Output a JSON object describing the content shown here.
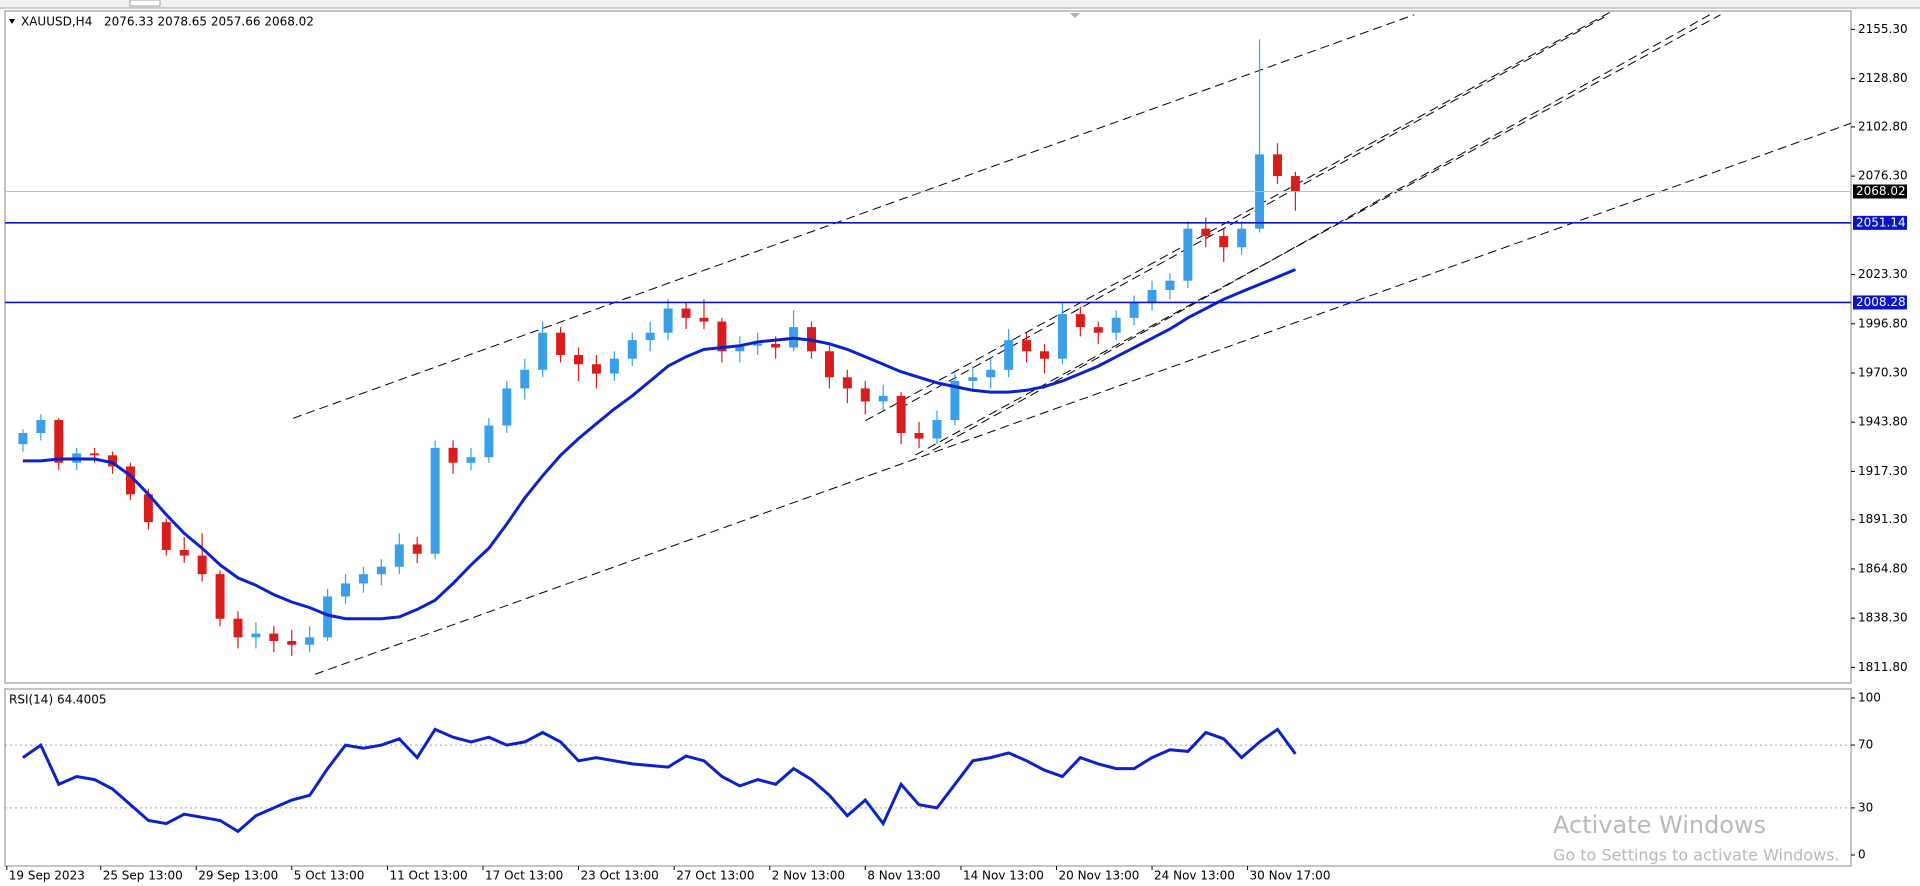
{
  "chart_data": [
    {
      "type": "candlestick",
      "symbol": "XAUUSD,H4",
      "ohlc": "2076.33 2078.65 2057.66 2068.02",
      "up_color": "#3a9fe6",
      "down_color": "#d91c1c",
      "xlim": [
        -1,
        102
      ],
      "ylim": [
        1803.4,
        2165.2
      ],
      "yticks": [
        {
          "value": 2155.3,
          "label": "2155.30"
        },
        {
          "value": 2128.8,
          "label": "2128.80"
        },
        {
          "value": 2102.8,
          "label": "2102.80"
        },
        {
          "value": 2076.3,
          "label": "2076.30"
        },
        {
          "value": 2023.3,
          "label": "2023.30"
        },
        {
          "value": 1996.8,
          "label": "1996.80"
        },
        {
          "value": 1970.3,
          "label": "1970.30"
        },
        {
          "value": 1943.8,
          "label": "1943.80"
        },
        {
          "value": 1917.3,
          "label": "1917.30"
        },
        {
          "value": 1891.3,
          "label": "1891.30"
        },
        {
          "value": 1864.8,
          "label": "1864.80"
        },
        {
          "value": 1838.3,
          "label": "1838.30"
        },
        {
          "value": 1811.8,
          "label": "1811.80"
        }
      ],
      "xticks": [
        {
          "value": -0.9,
          "label": "19 Sep 2023"
        },
        {
          "value": 4.34,
          "label": "25 Sep 13:00"
        },
        {
          "value": 9.67,
          "label": "29 Sep 13:00"
        },
        {
          "value": 15.0,
          "label": "5 Oct 13:00"
        },
        {
          "value": 20.34,
          "label": "11 Oct 13:00"
        },
        {
          "value": 25.67,
          "label": "17 Oct 13:00"
        },
        {
          "value": 31.0,
          "label": "23 Oct 13:00"
        },
        {
          "value": 36.34,
          "label": "27 Oct 13:00"
        },
        {
          "value": 41.67,
          "label": "2 Nov 13:00"
        },
        {
          "value": 47.0,
          "label": "8 Nov 13:00"
        },
        {
          "value": 52.34,
          "label": "14 Nov 13:00"
        },
        {
          "value": 57.67,
          "label": "20 Nov 13:00"
        },
        {
          "value": 63.0,
          "label": "24 Nov 13:00"
        },
        {
          "value": 68.33,
          "label": "30 Nov 17:00"
        }
      ],
      "candles": [
        [
          1932,
          1940,
          1928,
          1938
        ],
        [
          1938,
          1948,
          1934,
          1945
        ],
        [
          1945,
          1946,
          1918,
          1922
        ],
        [
          1922,
          1930,
          1918,
          1927
        ],
        [
          1927,
          1930,
          1922,
          1926
        ],
        [
          1926,
          1928,
          1916,
          1920
        ],
        [
          1920,
          1922,
          1902,
          1905
        ],
        [
          1905,
          1908,
          1886,
          1890
        ],
        [
          1890,
          1892,
          1872,
          1875
        ],
        [
          1875,
          1882,
          1868,
          1872
        ],
        [
          1872,
          1884,
          1858,
          1862
        ],
        [
          1862,
          1864,
          1834,
          1838
        ],
        [
          1838,
          1842,
          1822,
          1828
        ],
        [
          1828,
          1836,
          1822,
          1830
        ],
        [
          1830,
          1834,
          1820,
          1826
        ],
        [
          1826,
          1832,
          1818,
          1824
        ],
        [
          1824,
          1834,
          1820,
          1828
        ],
        [
          1828,
          1854,
          1826,
          1850
        ],
        [
          1850,
          1862,
          1846,
          1857
        ],
        [
          1857,
          1866,
          1852,
          1862
        ],
        [
          1862,
          1870,
          1856,
          1866
        ],
        [
          1866,
          1884,
          1862,
          1878
        ],
        [
          1878,
          1882,
          1868,
          1873
        ],
        [
          1873,
          1934,
          1870,
          1930
        ],
        [
          1930,
          1934,
          1916,
          1922
        ],
        [
          1922,
          1930,
          1918,
          1925
        ],
        [
          1925,
          1946,
          1922,
          1942
        ],
        [
          1942,
          1966,
          1938,
          1962
        ],
        [
          1962,
          1978,
          1956,
          1972
        ],
        [
          1972,
          1998,
          1968,
          1992
        ],
        [
          1992,
          1995,
          1976,
          1980
        ],
        [
          1980,
          1984,
          1966,
          1975
        ],
        [
          1975,
          1980,
          1962,
          1970
        ],
        [
          1970,
          1982,
          1966,
          1978
        ],
        [
          1978,
          1992,
          1974,
          1988
        ],
        [
          1988,
          1998,
          1982,
          1992
        ],
        [
          1992,
          2010,
          1988,
          2005
        ],
        [
          2005,
          2008,
          1994,
          2000
        ],
        [
          2000,
          2010,
          1994,
          1998
        ],
        [
          1998,
          2000,
          1976,
          1982
        ],
        [
          1982,
          1990,
          1976,
          1985
        ],
        [
          1985,
          1992,
          1980,
          1986
        ],
        [
          1986,
          1990,
          1978,
          1984
        ],
        [
          1984,
          2004,
          1982,
          1995
        ],
        [
          1995,
          1998,
          1978,
          1982
        ],
        [
          1982,
          1985,
          1962,
          1968
        ],
        [
          1968,
          1972,
          1954,
          1962
        ],
        [
          1962,
          1966,
          1948,
          1955
        ],
        [
          1955,
          1964,
          1950,
          1958
        ],
        [
          1958,
          1960,
          1932,
          1938
        ],
        [
          1938,
          1944,
          1930,
          1935
        ],
        [
          1935,
          1950,
          1932,
          1945
        ],
        [
          1945,
          1970,
          1942,
          1966
        ],
        [
          1966,
          1974,
          1960,
          1968
        ],
        [
          1968,
          1978,
          1962,
          1972
        ],
        [
          1972,
          1994,
          1968,
          1988
        ],
        [
          1988,
          1992,
          1976,
          1982
        ],
        [
          1982,
          1986,
          1970,
          1978
        ],
        [
          1978,
          2008,
          1975,
          2002
        ],
        [
          2002,
          2006,
          1990,
          1995
        ],
        [
          1995,
          1998,
          1986,
          1992
        ],
        [
          1992,
          2004,
          1988,
          2000
        ],
        [
          2000,
          2012,
          1996,
          2008
        ],
        [
          2008,
          2020,
          2004,
          2015
        ],
        [
          2015,
          2024,
          2010,
          2020
        ],
        [
          2020,
          2052,
          2016,
          2048
        ],
        [
          2048,
          2054,
          2038,
          2044
        ],
        [
          2044,
          2048,
          2030,
          2038
        ],
        [
          2038,
          2052,
          2034,
          2048
        ],
        [
          2048,
          2150,
          2046,
          2088
        ],
        [
          2088,
          2094,
          2072,
          2076.33
        ],
        [
          2076.33,
          2078.65,
          2057.66,
          2068.02
        ]
      ],
      "ma": {
        "color": "#0b22c9",
        "values": [
          1923,
          1923,
          1924,
          1924,
          1924,
          1922,
          1915,
          1905,
          1894,
          1884,
          1876,
          1867,
          1860,
          1856,
          1851,
          1847,
          1844,
          1840,
          1838,
          1838,
          1838,
          1839,
          1843,
          1848,
          1857,
          1867,
          1876,
          1889,
          1903,
          1915,
          1926,
          1935,
          1943,
          1951,
          1958,
          1966,
          1974,
          1979,
          1983,
          1984,
          1985,
          1987,
          1988,
          1989,
          1988,
          1986,
          1983,
          1979,
          1975,
          1971,
          1968,
          1965,
          1963,
          1961,
          1960,
          1960,
          1961,
          1963,
          1966,
          1970,
          1974,
          1979,
          1984,
          1989,
          1994,
          2000,
          2005,
          2010,
          2014,
          2018,
          2022,
          2026
        ]
      },
      "hlines": [
        {
          "value": 2051.14,
          "color": "#0a14c8"
        },
        {
          "value": 2008.28,
          "color": "#0a14c8"
        }
      ],
      "last": 2068.02,
      "trendlines": [
        {
          "x": [
            15.07,
            77.63
          ],
          "y": [
            1945.9,
            2163.2
          ]
        },
        {
          "x": [
            16.3,
            102.04
          ],
          "y": [
            1808.1,
            2104.9
          ]
        },
        {
          "x": [
            47.0,
            88.57
          ],
          "y": [
            1944.6,
            2164.6
          ]
        },
        {
          "x": [
            48.92,
            88.23
          ],
          "y": [
            1951.2,
            2161.9
          ]
        },
        {
          "x": [
            49.8,
            94.72
          ],
          "y": [
            1926.1,
            2163.2
          ]
        },
        {
          "x": [
            50.76,
            94.38
          ],
          "y": [
            1928.7,
            2164.6
          ]
        }
      ]
    },
    {
      "type": "line",
      "title": "RSI(14) 64.4005",
      "color": "#0b22c9",
      "ylim": [
        -7,
        105.7
      ],
      "yticks": [
        100,
        70,
        30,
        0
      ],
      "levels": [
        70,
        30
      ],
      "values": [
        62,
        70,
        45,
        50,
        48,
        42,
        32,
        22,
        20,
        26,
        24,
        22,
        15,
        25,
        30,
        35,
        38,
        55,
        70,
        68,
        70,
        74,
        62,
        80,
        75,
        72,
        75,
        70,
        72,
        78,
        72,
        60,
        62,
        60,
        58,
        57,
        56,
        63,
        60,
        50,
        44,
        48,
        45,
        55,
        48,
        38,
        25,
        35,
        20,
        45,
        32,
        30,
        45,
        60,
        62,
        65,
        60,
        54,
        50,
        62,
        58,
        55,
        55,
        62,
        67,
        66,
        78,
        74,
        62,
        72,
        80,
        64.4005
      ]
    }
  ],
  "watermark": {
    "title": "Activate Windows",
    "text": "Go to Settings to activate Windows."
  }
}
